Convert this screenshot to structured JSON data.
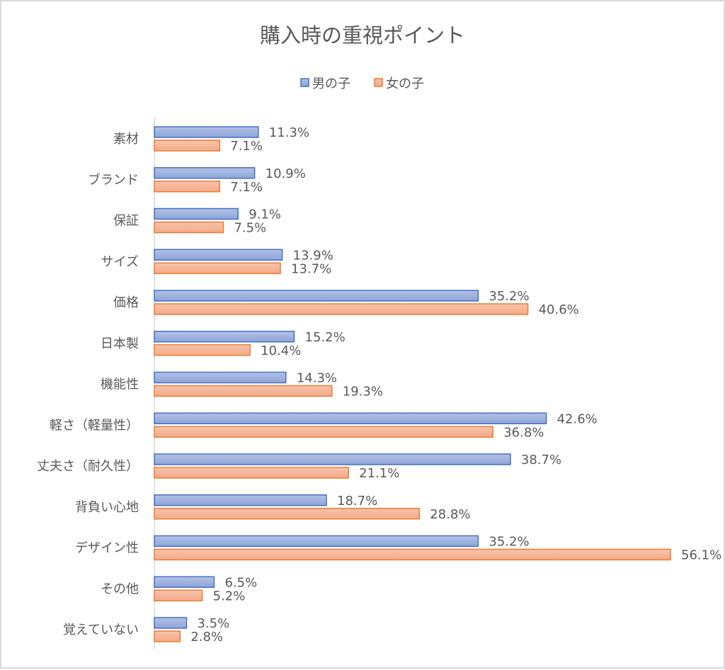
{
  "chart_data": {
    "type": "bar",
    "orientation": "horizontal",
    "title": "購入時の重視ポイント",
    "legend_position": "top",
    "grid": false,
    "xlim": [
      0,
      56.1
    ],
    "value_format": "percent, 1 decimal",
    "categories": [
      "素材",
      "ブランド",
      "保証",
      "サイズ",
      "価格",
      "日本製",
      "機能性",
      "軽さ（軽量性）",
      "丈夫さ（耐久性）",
      "背負い心地",
      "デザイン性",
      "その他",
      "覚えていない"
    ],
    "series": [
      {
        "name": "男の子",
        "color": "#4472c4",
        "fill": "#a2b4de",
        "values": [
          11.3,
          10.9,
          9.1,
          13.9,
          35.2,
          15.2,
          14.3,
          42.6,
          38.7,
          18.7,
          35.2,
          6.5,
          3.5
        ]
      },
      {
        "name": "女の子",
        "color": "#ed7d31",
        "fill": "#f6b79c",
        "values": [
          7.1,
          7.1,
          7.5,
          13.7,
          40.6,
          10.4,
          19.3,
          36.8,
          21.1,
          28.8,
          56.1,
          5.2,
          2.8
        ]
      }
    ]
  }
}
